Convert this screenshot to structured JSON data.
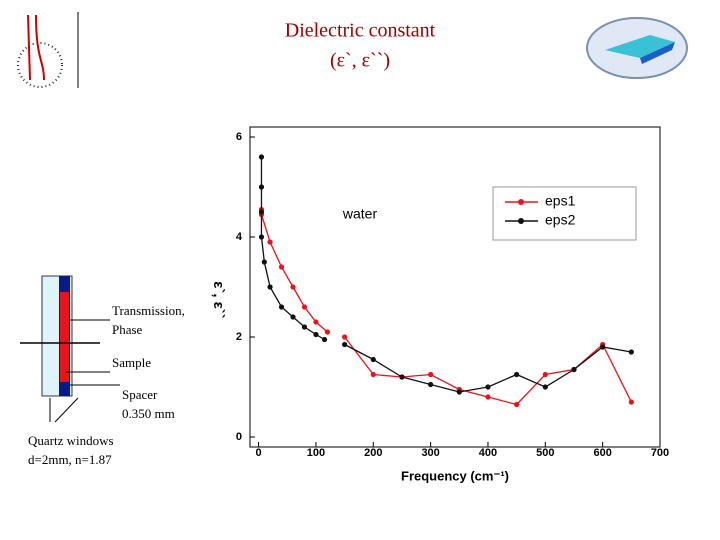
{
  "header": {
    "title": "Dielectric constant",
    "subtitle": "(ε`, ε``)"
  },
  "diagram": {
    "labels": [
      [
        "Transmission,",
        "Phase"
      ],
      [
        "Sample"
      ],
      [
        "Spacer",
        "0.350 mm"
      ],
      [
        "Quartz windows",
        "d=2mm, n=1.87"
      ]
    ]
  },
  "chart_data": {
    "type": "line",
    "xlabel": "Frequency (cm⁻¹)",
    "ylabel": "ε`, ε``",
    "annotation": "water",
    "xlim": [
      -15,
      700
    ],
    "ylim": [
      -0.2,
      6.2
    ],
    "xticks": [
      0,
      100,
      200,
      300,
      400,
      500,
      600,
      700
    ],
    "yticks": [
      0,
      2,
      4,
      6
    ],
    "legend": "upper right",
    "series": [
      {
        "name": "eps1",
        "color": "#e8141c",
        "x": [
          5,
          5,
          20,
          40,
          60,
          80,
          100,
          120,
          130,
          150,
          200,
          250,
          300,
          350,
          400,
          450,
          500,
          550,
          600,
          650
        ],
        "values": [
          4.55,
          4.45,
          3.9,
          3.4,
          3.0,
          2.6,
          2.3,
          2.1,
          null,
          2.0,
          1.25,
          1.2,
          1.25,
          0.95,
          0.8,
          0.65,
          1.25,
          1.35,
          1.85,
          0.7
        ]
      },
      {
        "name": "eps2",
        "color": "#111111",
        "x": [
          5,
          5,
          5,
          5,
          10,
          20,
          40,
          60,
          80,
          100,
          115,
          130,
          150,
          200,
          250,
          300,
          350,
          400,
          450,
          500,
          550,
          600,
          650
        ],
        "values": [
          5.6,
          5.0,
          4.5,
          4.0,
          3.5,
          3.0,
          2.6,
          2.4,
          2.2,
          2.05,
          1.95,
          null,
          1.85,
          1.55,
          1.2,
          1.05,
          0.9,
          1.0,
          1.25,
          1.0,
          1.35,
          1.8,
          1.7
        ]
      }
    ]
  }
}
